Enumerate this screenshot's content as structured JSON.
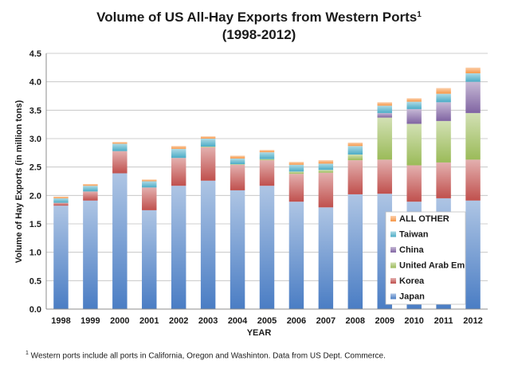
{
  "chart_data": {
    "type": "bar",
    "stacked": true,
    "title_line1": "Volume of US All-Hay Exports from Western Ports",
    "title_sup": "1",
    "title_line2": "(1998-2012)",
    "xlabel": "YEAR",
    "ylabel": "Volume of Hay Exports (in million tons)",
    "ylim": [
      0,
      4.5
    ],
    "yticks": [
      "0.0",
      "0.5",
      "1.0",
      "1.5",
      "2.0",
      "2.5",
      "3.0",
      "3.5",
      "4.0",
      "4.5"
    ],
    "grid": true,
    "legend_position": "bottom-right, inside plot",
    "categories": [
      "1998",
      "1999",
      "2000",
      "2001",
      "2002",
      "2003",
      "2004",
      "2005",
      "2006",
      "2007",
      "2008",
      "2009",
      "2010",
      "2011",
      "2012"
    ],
    "series": [
      {
        "name": "Japan",
        "color": "#4a7dc4",
        "values": [
          1.82,
          1.91,
          2.39,
          1.74,
          2.17,
          2.26,
          2.09,
          2.17,
          1.89,
          1.79,
          2.02,
          2.03,
          1.89,
          1.95,
          1.91
        ]
      },
      {
        "name": "Korea",
        "color": "#c0504d",
        "values": [
          0.05,
          0.16,
          0.39,
          0.4,
          0.49,
          0.59,
          0.45,
          0.45,
          0.49,
          0.61,
          0.6,
          0.6,
          0.64,
          0.63,
          0.72
        ]
      },
      {
        "name": "United Arab Em",
        "color": "#9bbb59",
        "values": [
          0.0,
          0.0,
          0.0,
          0.0,
          0.0,
          0.01,
          0.01,
          0.02,
          0.04,
          0.05,
          0.1,
          0.74,
          0.73,
          0.73,
          0.82
        ]
      },
      {
        "name": "China",
        "color": "#8064a2",
        "values": [
          0.0,
          0.0,
          0.0,
          0.0,
          0.0,
          0.0,
          0.0,
          0.0,
          0.0,
          0.0,
          0.0,
          0.08,
          0.26,
          0.33,
          0.55
        ]
      },
      {
        "name": "Taiwan",
        "color": "#4bacc6",
        "values": [
          0.08,
          0.1,
          0.13,
          0.11,
          0.16,
          0.14,
          0.1,
          0.12,
          0.12,
          0.11,
          0.15,
          0.13,
          0.13,
          0.15,
          0.15
        ]
      },
      {
        "name": "ALL OTHER",
        "color": "#f79646",
        "values": [
          0.03,
          0.03,
          0.03,
          0.03,
          0.05,
          0.04,
          0.05,
          0.04,
          0.05,
          0.06,
          0.06,
          0.06,
          0.06,
          0.1,
          0.1
        ]
      }
    ],
    "legend_order": [
      "ALL OTHER",
      "Taiwan",
      "China",
      "United Arab Em",
      "Korea",
      "Japan"
    ]
  },
  "footnote": {
    "marker": "1",
    "text": " Western ports include all ports in California, Oregon and Washinton. Data from US Dept. Commerce."
  }
}
